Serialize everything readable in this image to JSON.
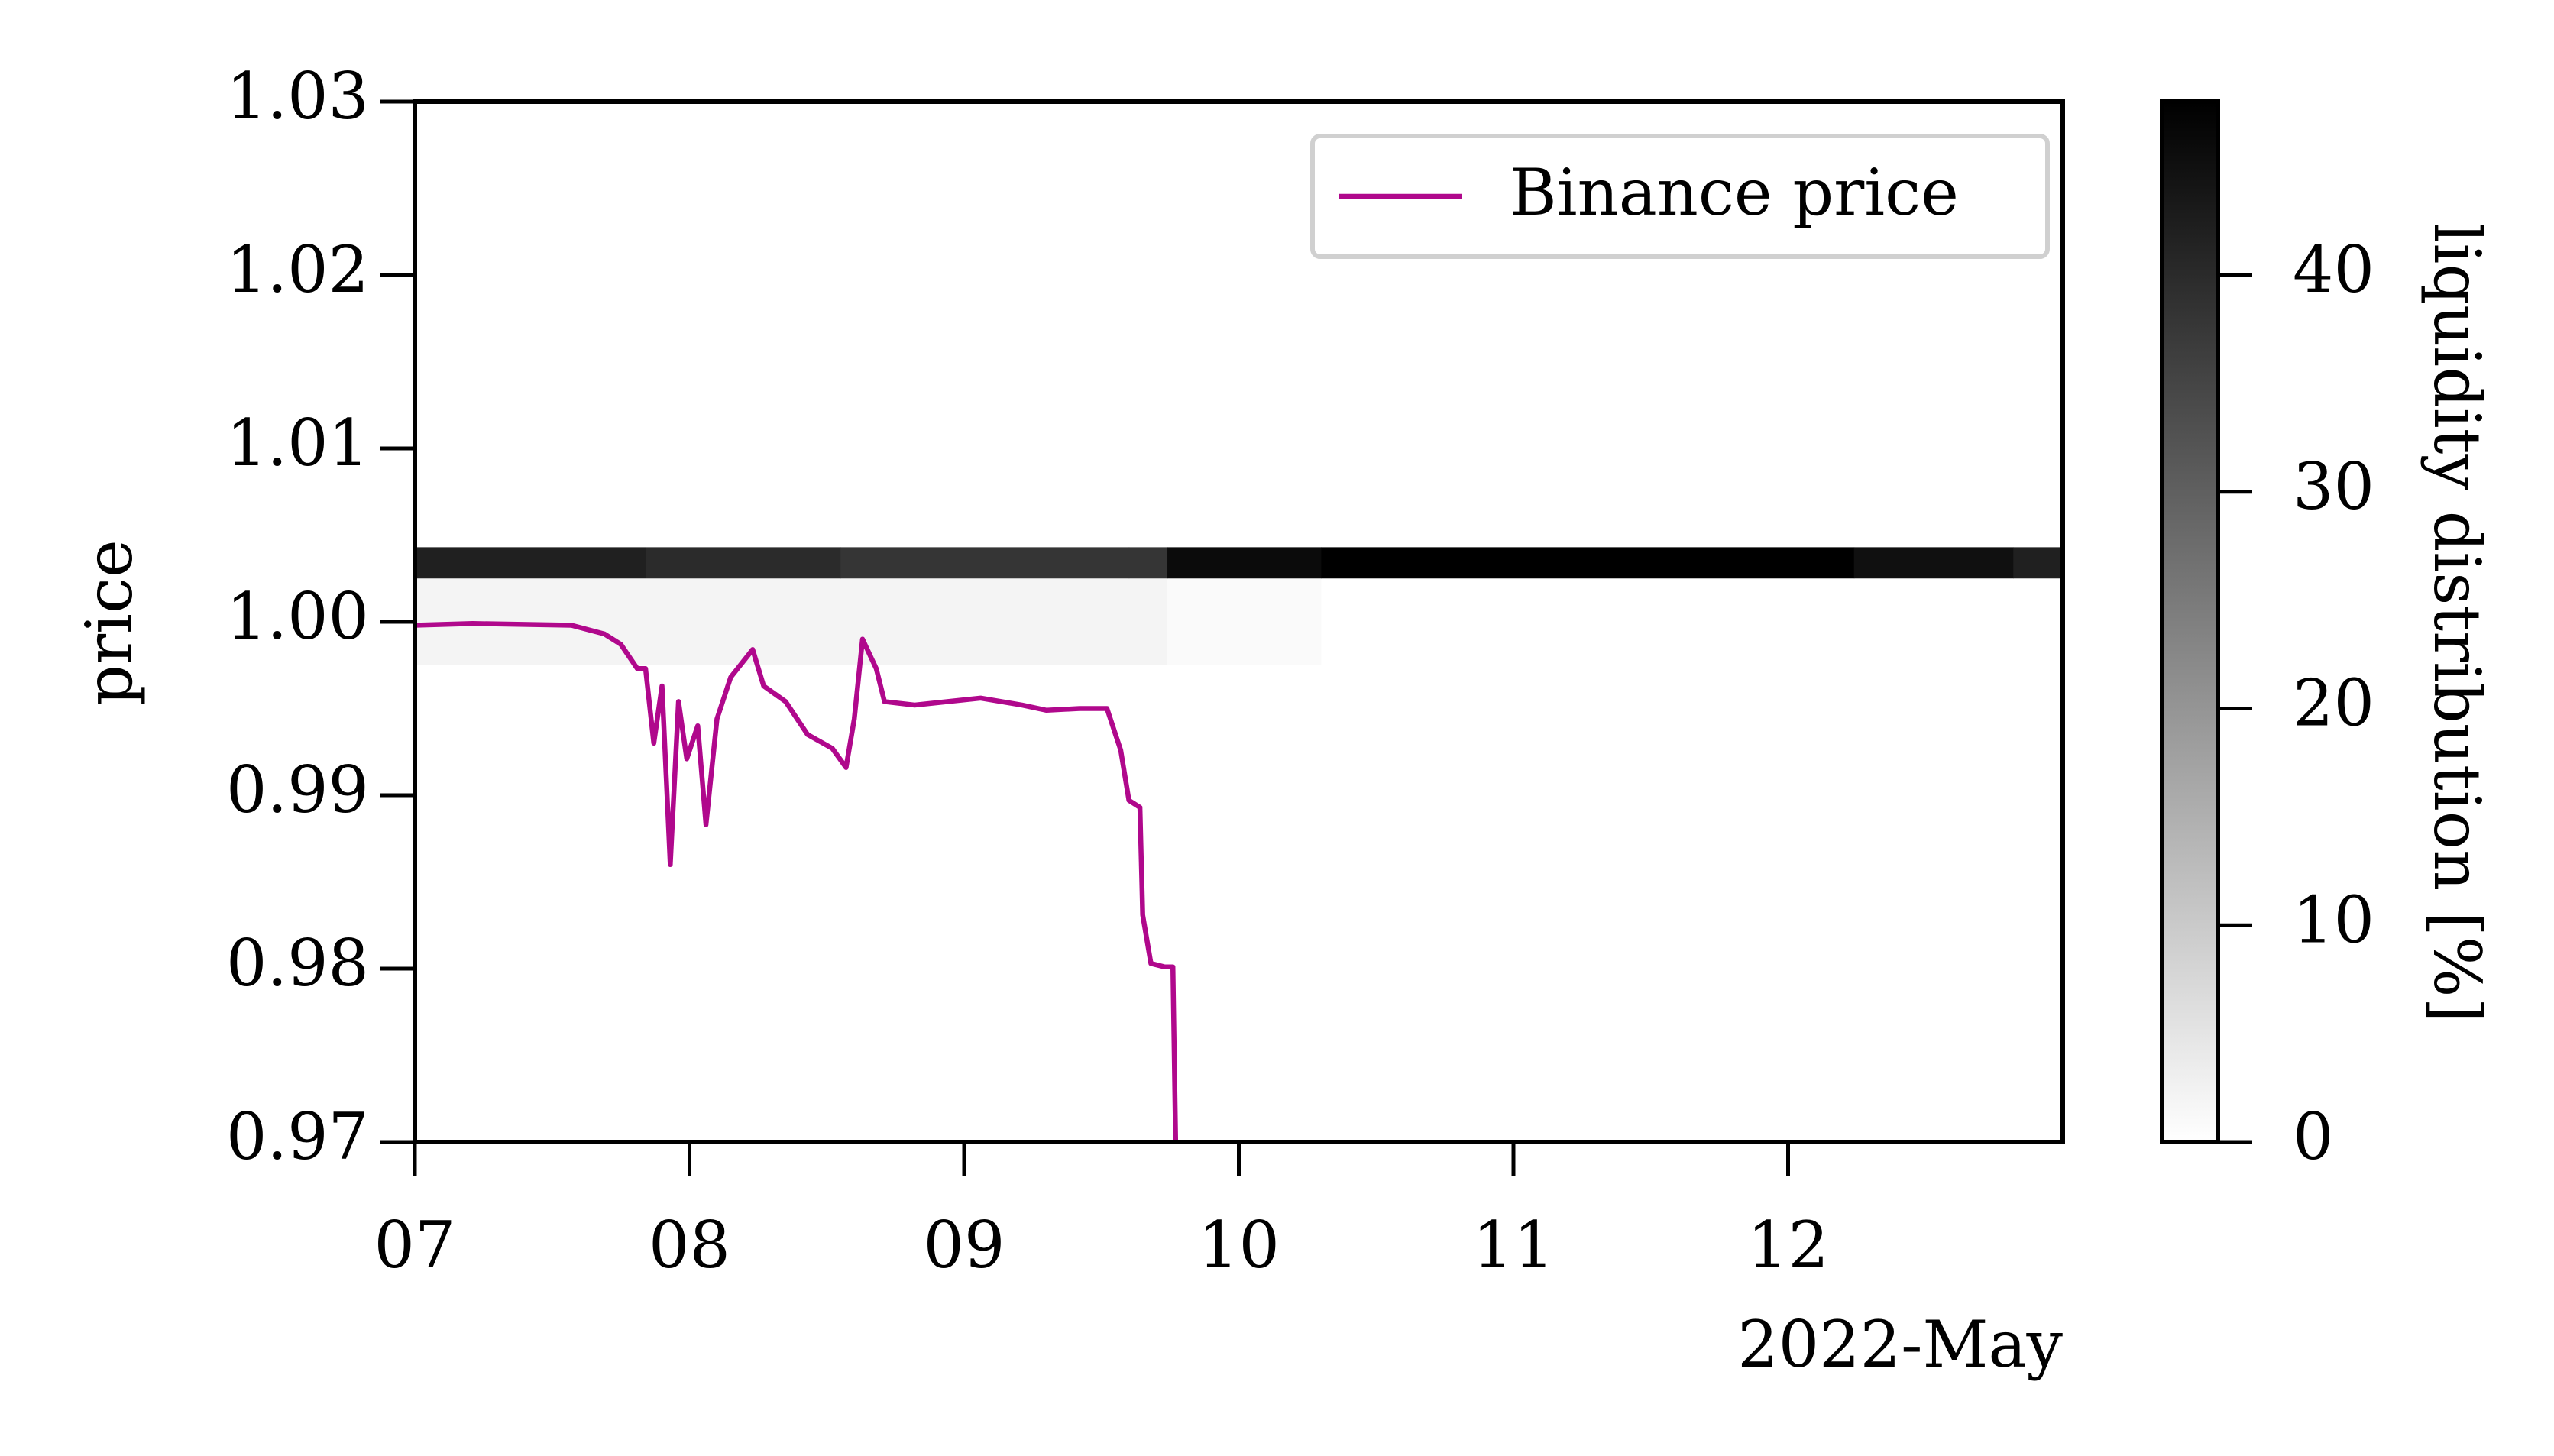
{
  "chart_data": {
    "type": "line",
    "ylabel": "price",
    "x_offset_label": "2022-May",
    "x": [
      7.0,
      7.21,
      7.57,
      7.69,
      7.75,
      7.81,
      7.84,
      7.87,
      7.9,
      7.93,
      7.96,
      7.99,
      8.03,
      8.06,
      8.1,
      8.15,
      8.23,
      8.27,
      8.35,
      8.43,
      8.52,
      8.57,
      8.6,
      8.63,
      8.68,
      8.71,
      8.82,
      9.06,
      9.21,
      9.3,
      9.42,
      9.52,
      9.57,
      9.6,
      9.64,
      9.65,
      9.68,
      9.73,
      9.76,
      9.77
    ],
    "series": [
      {
        "name": "Binance price",
        "color": "#b0088c",
        "values": [
          0.9998,
          0.9999,
          0.9998,
          0.9993,
          0.9987,
          0.9973,
          0.9973,
          0.993,
          0.9963,
          0.986,
          0.9954,
          0.9921,
          0.994,
          0.9883,
          0.9944,
          0.9968,
          0.9984,
          0.9963,
          0.9954,
          0.9935,
          0.9927,
          0.9916,
          0.9944,
          0.999,
          0.9973,
          0.9954,
          0.9952,
          0.9956,
          0.9952,
          0.9949,
          0.995,
          0.995,
          0.9926,
          0.9897,
          0.9893,
          0.9831,
          0.9803,
          0.9801,
          0.9801,
          0.97
        ]
      }
    ],
    "xlim": [
      7,
      13
    ],
    "xticks": [
      {
        "value": 7,
        "label": "07"
      },
      {
        "value": 8,
        "label": "08"
      },
      {
        "value": 9,
        "label": "09"
      },
      10,
      11,
      12
    ],
    "ylim": [
      0.97,
      1.03
    ],
    "yticks": [
      0.97,
      0.98,
      0.99,
      {
        "value": 1,
        "label": "1.00"
      },
      1.01,
      1.02,
      1.03
    ],
    "legend": "upper right",
    "heatmap": {
      "label": "liquidity distribution [%]",
      "x_edges": [
        7,
        7.84,
        8.55,
        9.6,
        9.74,
        10.3,
        12.24,
        12.82,
        13
      ],
      "y_edges": [
        0.9975,
        1.0025,
        1.0043
      ],
      "values": [
        [
          2,
          2,
          2,
          2,
          1,
          0,
          0,
          0
        ],
        [
          42,
          40,
          38,
          38,
          46,
          48,
          45,
          42
        ]
      ],
      "clim": [
        0,
        48
      ],
      "cmap": [
        "#ffffff",
        "#000000"
      ],
      "ticks": [
        0,
        10,
        20,
        30,
        40
      ]
    }
  }
}
